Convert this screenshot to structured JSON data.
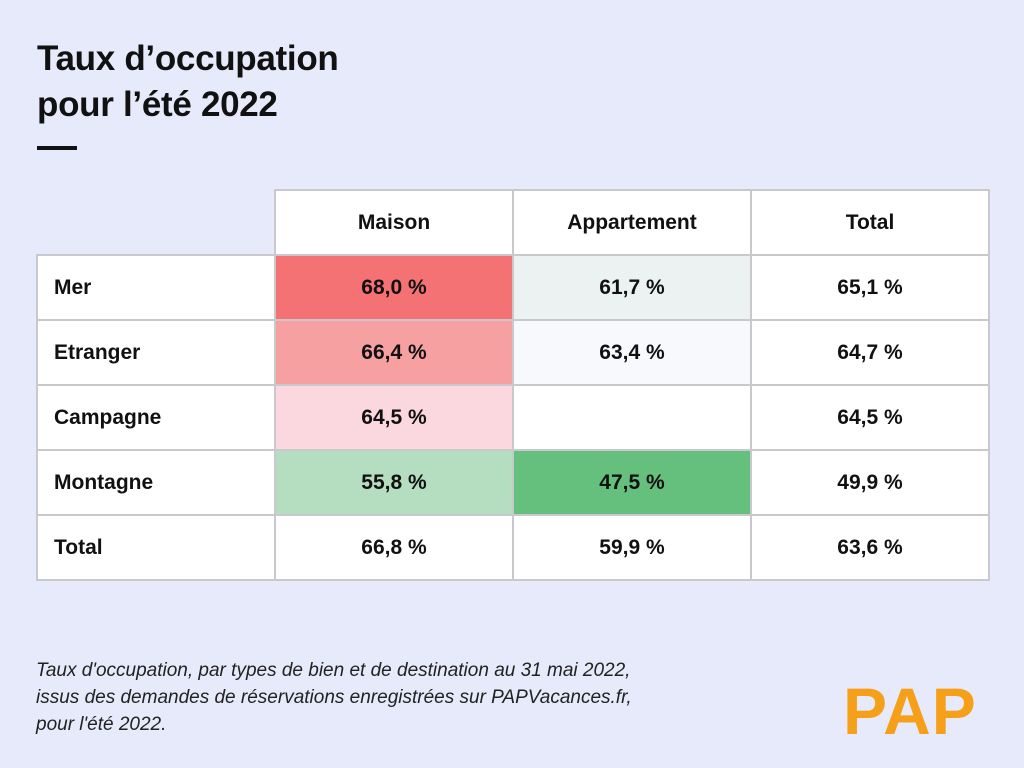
{
  "title": {
    "line1": "Taux d’occupation",
    "line2": "pour l’été 2022"
  },
  "chart_data": {
    "type": "table",
    "columns": [
      "Maison",
      "Appartement",
      "Total"
    ],
    "rows": [
      {
        "label": "Mer",
        "cells": [
          "68,0 %",
          "61,7 %",
          "65,1 %"
        ],
        "colors": [
          "#f47174",
          "#ecf2f1",
          "#ffffff"
        ]
      },
      {
        "label": "Etranger",
        "cells": [
          "66,4 %",
          "63,4 %",
          "64,7 %"
        ],
        "colors": [
          "#f6a0a2",
          "#f8f9fc",
          "#ffffff"
        ]
      },
      {
        "label": "Campagne",
        "cells": [
          "64,5 %",
          "",
          "64,5 %"
        ],
        "colors": [
          "#fbd8df",
          "#ffffff",
          "#ffffff"
        ]
      },
      {
        "label": "Montagne",
        "cells": [
          "55,8 %",
          "47,5 %",
          "49,9 %"
        ],
        "colors": [
          "#b5ddc0",
          "#65c07d",
          "#ffffff"
        ]
      }
    ],
    "total_row": {
      "label": "Total",
      "cells": [
        "66,8 %",
        "59,9 %",
        "63,6 %"
      ]
    }
  },
  "footnote": {
    "line1": "Taux d'occupation, par types de bien et de destination au 31 mai 2022,",
    "line2": "issus des demandes de réservations enregistrées sur PAPVacances.fr,",
    "line3": "pour l'été 2022."
  },
  "logo": {
    "text": "PAP",
    "color": "#f6a01a"
  },
  "colors": {
    "background": "#e6eafa",
    "grid": "#c9c9cd"
  }
}
